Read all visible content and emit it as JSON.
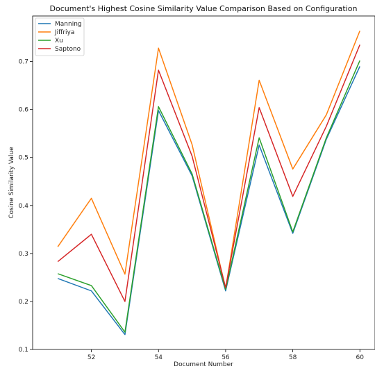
{
  "chart_data": {
    "type": "line",
    "title": "Document's Highest Cosine Similarity Value Comparison Based on Configuration",
    "xlabel": "Document Number",
    "ylabel": "Cosine Similarity Value",
    "x": [
      51,
      52,
      53,
      54,
      55,
      56,
      57,
      58,
      59,
      60
    ],
    "xlim": [
      50.25,
      60.45
    ],
    "ylim": [
      0.1,
      0.795
    ],
    "x_ticks": [
      52,
      54,
      56,
      58,
      60
    ],
    "y_ticks": [
      0.1,
      0.2,
      0.3,
      0.4,
      0.5,
      0.6,
      0.7
    ],
    "grid": false,
    "legend_position": "top-left",
    "series": [
      {
        "name": "Manning",
        "color": "#1f77b4",
        "values": [
          0.248,
          0.222,
          0.131,
          0.598,
          0.462,
          0.222,
          0.526,
          0.342,
          0.538,
          0.69
        ]
      },
      {
        "name": "Jiffriya",
        "color": "#ff7f0e",
        "values": [
          0.314,
          0.415,
          0.257,
          0.728,
          0.527,
          0.227,
          0.661,
          0.476,
          0.589,
          0.764
        ]
      },
      {
        "name": "Xu",
        "color": "#2ca02c",
        "values": [
          0.258,
          0.233,
          0.136,
          0.606,
          0.466,
          0.225,
          0.541,
          0.345,
          0.541,
          0.702
        ]
      },
      {
        "name": "Saptono",
        "color": "#d62728",
        "values": [
          0.283,
          0.34,
          0.2,
          0.682,
          0.503,
          0.229,
          0.604,
          0.419,
          0.565,
          0.735
        ]
      }
    ]
  }
}
